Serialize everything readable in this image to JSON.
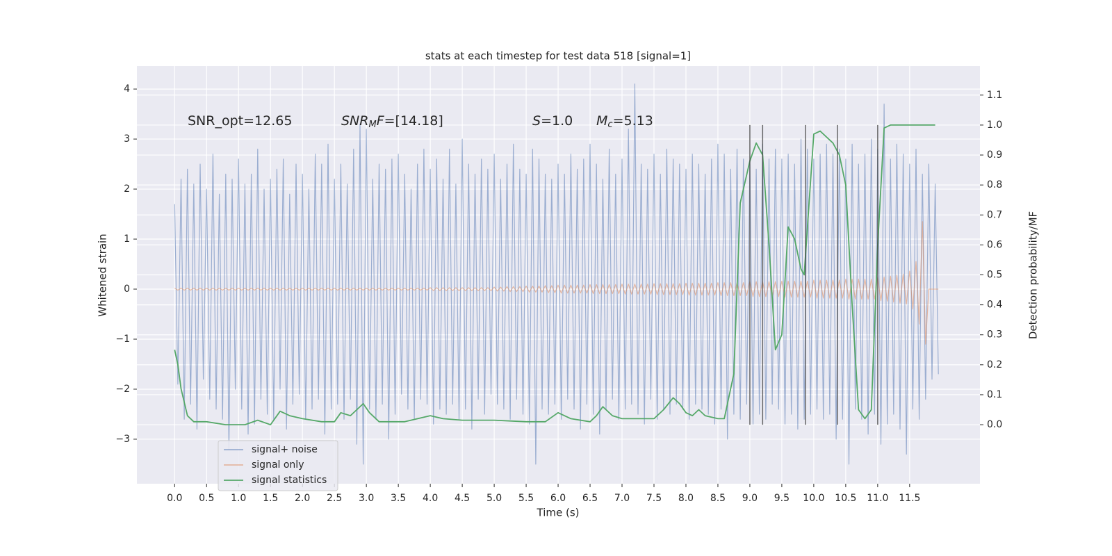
{
  "chart_data": {
    "type": "line",
    "title": "stats at each timestep for test data 518 [signal=1]",
    "xlabel": "Time (s)",
    "ylabel": "Whitened strain",
    "y2label": "Detection probability/MF",
    "grid": true,
    "legend": "lower left",
    "background": "#eaeaf2",
    "xlim": [
      -0.59,
      12.6
    ],
    "ylim": [
      -3.89,
      4.46
    ],
    "y2lim": [
      -0.197,
      1.197
    ],
    "xticks": [
      {
        "value": 0,
        "label": "0.0"
      },
      0.5,
      {
        "value": 1,
        "label": "1.0"
      },
      1.5,
      {
        "value": 2,
        "label": "2.0"
      },
      2.5,
      {
        "value": 3,
        "label": "3.0"
      },
      3.5,
      {
        "value": 4,
        "label": "4.0"
      },
      4.5,
      {
        "value": 5,
        "label": "5.0"
      },
      5.5,
      {
        "value": 6,
        "label": "6.0"
      },
      6.5,
      {
        "value": 7,
        "label": "7.0"
      },
      7.5,
      {
        "value": 8,
        "label": "8.0"
      },
      8.5,
      {
        "value": 9,
        "label": "9.0"
      },
      9.5,
      {
        "value": 10,
        "label": "10.0"
      },
      10.5,
      {
        "value": 11,
        "label": "11.0"
      },
      11.5
    ],
    "yticks": [
      {
        "value": -3,
        "label": "−3"
      },
      {
        "value": -2,
        "label": "−2"
      },
      {
        "value": -1,
        "label": "−1"
      },
      0,
      1,
      2,
      3,
      4
    ],
    "y2ticks": [
      {
        "value": 0,
        "label": "0.0"
      },
      0.1,
      0.2,
      0.3,
      0.4,
      0.5,
      0.6,
      0.7,
      0.8,
      0.9,
      {
        "value": 1,
        "label": "1.0"
      },
      1.1
    ],
    "annotations": [
      [
        "SNR_opt=12.65"
      ],
      [
        "SNR",
        "M",
        "F",
        "=[14.18]"
      ],
      [
        "S",
        "=1.0"
      ],
      [
        "M",
        "c",
        "=5.13"
      ]
    ],
    "vlines": [
      9.0,
      9.2,
      9.87,
      10.37,
      11.0
    ],
    "vline_color": "#444444",
    "x": [
      0,
      0.05,
      0.1,
      0.15,
      0.2,
      0.25,
      0.3,
      0.35,
      0.4,
      0.45,
      0.5,
      0.55,
      0.6,
      0.65,
      0.7,
      0.75,
      0.8,
      0.85,
      0.9,
      0.95,
      1,
      1.05,
      1.1,
      1.15,
      1.2,
      1.25,
      1.3,
      1.35,
      1.4,
      1.45,
      1.5,
      1.55,
      1.6,
      1.65,
      1.7,
      1.75,
      1.8,
      1.85,
      1.9,
      1.95,
      2,
      2.05,
      2.1,
      2.15,
      2.2,
      2.25,
      2.3,
      2.35,
      2.4,
      2.45,
      2.5,
      2.55,
      2.6,
      2.65,
      2.7,
      2.75,
      2.8,
      2.85,
      2.9,
      2.95,
      3,
      3.05,
      3.1,
      3.15,
      3.2,
      3.25,
      3.3,
      3.35,
      3.4,
      3.45,
      3.5,
      3.55,
      3.6,
      3.65,
      3.7,
      3.75,
      3.8,
      3.85,
      3.9,
      3.95,
      4,
      4.05,
      4.1,
      4.15,
      4.2,
      4.25,
      4.3,
      4.35,
      4.4,
      4.45,
      4.5,
      4.55,
      4.6,
      4.65,
      4.7,
      4.75,
      4.8,
      4.85,
      4.9,
      4.95,
      5,
      5.05,
      5.1,
      5.15,
      5.2,
      5.25,
      5.3,
      5.35,
      5.4,
      5.45,
      5.5,
      5.55,
      5.6,
      5.65,
      5.7,
      5.75,
      5.8,
      5.85,
      5.9,
      5.95,
      6,
      6.05,
      6.1,
      6.15,
      6.2,
      6.25,
      6.3,
      6.35,
      6.4,
      6.45,
      6.5,
      6.55,
      6.6,
      6.65,
      6.7,
      6.75,
      6.8,
      6.85,
      6.9,
      6.95,
      7,
      7.05,
      7.1,
      7.15,
      7.2,
      7.25,
      7.3,
      7.35,
      7.4,
      7.45,
      7.5,
      7.55,
      7.6,
      7.65,
      7.7,
      7.75,
      7.8,
      7.85,
      7.9,
      7.95,
      8,
      8.05,
      8.1,
      8.15,
      8.2,
      8.25,
      8.3,
      8.35,
      8.4,
      8.45,
      8.5,
      8.55,
      8.6,
      8.65,
      8.7,
      8.75,
      8.8,
      8.85,
      8.9,
      8.95,
      9,
      9.05,
      9.1,
      9.15,
      9.2,
      9.25,
      9.3,
      9.35,
      9.4,
      9.45,
      9.5,
      9.55,
      9.6,
      9.65,
      9.7,
      9.75,
      9.8,
      9.85,
      9.9,
      9.95,
      10,
      10.05,
      10.1,
      10.15,
      10.2,
      10.25,
      10.3,
      10.35,
      10.4,
      10.45,
      10.5,
      10.55,
      10.6,
      10.65,
      10.7,
      10.75,
      10.8,
      10.85,
      10.9,
      10.95,
      11,
      11.05,
      11.1,
      11.15,
      11.2,
      11.25,
      11.3,
      11.35,
      11.4,
      11.45,
      11.5,
      11.55,
      11.6,
      11.65,
      11.7,
      11.75,
      11.8,
      11.85,
      11.9,
      11.95
    ],
    "series": [
      {
        "name": "signal+ noise",
        "color": "#4c72b0",
        "values": [
          1.7,
          -1.9,
          2.2,
          -2.6,
          2.4,
          -2.3,
          2.1,
          -2.8,
          2.5,
          -1.8,
          2.0,
          -2.2,
          2.7,
          -2.4,
          1.9,
          -2.6,
          2.3,
          -3.2,
          2.2,
          -2.0,
          2.6,
          -2.4,
          2.1,
          -2.9,
          2.3,
          -2.7,
          2.8,
          -2.2,
          2.0,
          -2.5,
          2.2,
          -2.6,
          2.4,
          -2.0,
          2.6,
          -2.8,
          1.9,
          -2.3,
          2.5,
          -2.1,
          2.3,
          -2.6,
          2.0,
          -2.4,
          2.7,
          -2.2,
          2.5,
          -2.9,
          2.9,
          -2.4,
          2.2,
          -2.3,
          2.5,
          -2.6,
          2.1,
          -2.2,
          2.8,
          -3.1,
          3.3,
          -3.5,
          3.2,
          -2.4,
          2.2,
          -2.6,
          2.5,
          -2.3,
          2.4,
          -3.0,
          2.6,
          -2.5,
          2.7,
          -2.1,
          2.3,
          -2.4,
          2.0,
          -2.6,
          2.5,
          -2.2,
          2.8,
          -2.3,
          2.4,
          -2.7,
          2.6,
          -2.4,
          2.2,
          -2.5,
          2.8,
          -2.3,
          2.1,
          -2.6,
          3.0,
          -2.4,
          2.5,
          -2.8,
          2.3,
          -2.2,
          2.6,
          -2.5,
          2.4,
          -2.1,
          2.7,
          -2.3,
          2.2,
          -2.4,
          2.5,
          -2.6,
          2.9,
          -2.2,
          2.4,
          -2.5,
          2.3,
          -2.7,
          2.8,
          -3.5,
          2.6,
          -2.4,
          2.3,
          -2.5,
          2.2,
          -2.3,
          2.5,
          -2.6,
          2.3,
          -2.2,
          2.7,
          -2.4,
          2.4,
          -2.8,
          2.6,
          -2.3,
          2.9,
          -2.5,
          2.5,
          -2.9,
          2.2,
          -2.4,
          2.8,
          -2.2,
          2.3,
          -2.6,
          2.6,
          -2.4,
          3.2,
          -2.3,
          4.1,
          -2.5,
          2.5,
          -2.7,
          2.4,
          -2.2,
          2.7,
          -2.6,
          2.3,
          -2.4,
          2.8,
          -2.5,
          2.6,
          -2.3,
          2.5,
          -2.4,
          2.4,
          -2.6,
          2.7,
          -2.3,
          2.5,
          -2.4,
          2.3,
          -2.5,
          2.6,
          -2.7,
          2.9,
          -2.4,
          2.7,
          -3.0,
          2.4,
          -2.5,
          2.8,
          -2.6,
          2.6,
          -2.3,
          2.5,
          -2.7,
          2.4,
          -2.5,
          2.9,
          -2.6,
          2.6,
          -2.3,
          2.8,
          -2.4,
          2.6,
          -2.7,
          2.7,
          -2.5,
          2.5,
          -2.8,
          3.0,
          -2.6,
          2.8,
          -2.5,
          2.6,
          -2.4,
          2.7,
          -2.6,
          2.9,
          -2.5,
          2.7,
          -3.0,
          2.8,
          -2.6,
          2.6,
          -3.5,
          2.9,
          -2.4,
          2.5,
          -2.6,
          2.7,
          -2.9,
          3.0,
          -2.5,
          2.8,
          -3.1,
          3.7,
          -2.7,
          2.6,
          -2.5,
          2.9,
          -2.8,
          2.7,
          -3.3,
          2.5,
          -2.4,
          2.8,
          -2.6,
          2.3,
          -2.2,
          2.5,
          -1.8,
          2.1,
          -1.7
        ]
      },
      {
        "name": "signal only",
        "color": "#dd8452",
        "values": [
          0.02,
          -0.02,
          0.02,
          -0.02,
          0.02,
          -0.02,
          0.02,
          -0.02,
          0.02,
          -0.02,
          0.02,
          -0.02,
          0.02,
          -0.02,
          0.02,
          -0.02,
          0.02,
          -0.02,
          0.02,
          -0.02,
          0.02,
          -0.02,
          0.02,
          -0.02,
          0.02,
          -0.02,
          0.02,
          -0.02,
          0.02,
          -0.02,
          0.02,
          -0.02,
          0.02,
          -0.02,
          0.02,
          -0.02,
          0.02,
          -0.02,
          0.02,
          -0.02,
          0.02,
          -0.02,
          0.02,
          -0.02,
          0.02,
          -0.02,
          0.02,
          -0.02,
          0.02,
          -0.02,
          0.02,
          -0.02,
          0.02,
          -0.02,
          0.02,
          -0.02,
          0.02,
          -0.02,
          0.02,
          -0.02,
          0.02,
          -0.02,
          0.02,
          -0.02,
          0.02,
          -0.02,
          0.02,
          -0.02,
          0.02,
          -0.02,
          0.02,
          -0.02,
          0.02,
          -0.02,
          0.02,
          -0.02,
          0.02,
          -0.02,
          0.02,
          -0.02,
          0.03,
          -0.03,
          0.03,
          -0.03,
          0.03,
          -0.03,
          0.03,
          -0.03,
          0.03,
          -0.03,
          0.03,
          -0.03,
          0.03,
          -0.03,
          0.03,
          -0.03,
          0.03,
          -0.03,
          0.03,
          -0.03,
          0.04,
          -0.04,
          0.04,
          -0.04,
          0.05,
          -0.05,
          0.05,
          -0.05,
          0.05,
          -0.05,
          0.06,
          -0.06,
          0.06,
          -0.06,
          0.06,
          -0.06,
          0.07,
          -0.07,
          0.07,
          -0.07,
          0.08,
          -0.08,
          0.08,
          -0.08,
          0.08,
          -0.08,
          0.08,
          -0.08,
          0.08,
          -0.08,
          0.09,
          -0.09,
          0.09,
          -0.09,
          0.09,
          -0.09,
          0.09,
          -0.09,
          0.09,
          -0.09,
          0.1,
          -0.1,
          0.1,
          -0.1,
          0.1,
          -0.1,
          0.1,
          -0.1,
          0.1,
          -0.1,
          0.11,
          -0.11,
          0.11,
          -0.11,
          0.11,
          -0.11,
          0.11,
          -0.11,
          0.11,
          -0.11,
          0.12,
          -0.12,
          0.12,
          -0.12,
          0.12,
          -0.12,
          0.12,
          -0.12,
          0.12,
          -0.12,
          0.13,
          -0.13,
          0.13,
          -0.13,
          0.13,
          -0.13,
          0.13,
          -0.13,
          0.13,
          -0.13,
          0.15,
          -0.15,
          0.15,
          -0.15,
          0.15,
          -0.15,
          0.15,
          -0.15,
          0.15,
          -0.15,
          0.16,
          -0.16,
          0.16,
          -0.16,
          0.16,
          -0.16,
          0.16,
          -0.16,
          0.16,
          -0.16,
          0.18,
          -0.18,
          0.18,
          -0.18,
          0.18,
          -0.18,
          0.18,
          -0.18,
          0.18,
          -0.18,
          0.2,
          -0.2,
          0.2,
          -0.2,
          0.2,
          -0.2,
          0.2,
          -0.2,
          0.2,
          -0.2,
          0.23,
          -0.23,
          0.24,
          -0.24,
          0.26,
          -0.26,
          0.28,
          -0.28,
          0.3,
          -0.3,
          0.36,
          -0.4,
          0.55,
          -0.7,
          1.35,
          -1.1,
          0,
          0,
          0,
          0
        ]
      },
      {
        "name": "signal statistics",
        "color": "#55a868",
        "axis": "y2",
        "x": [
          0,
          0.05,
          0.1,
          0.2,
          0.3,
          0.5,
          0.8,
          1.1,
          1.3,
          1.5,
          1.65,
          1.8,
          2.0,
          2.3,
          2.5,
          2.6,
          2.75,
          2.85,
          2.95,
          3.05,
          3.2,
          3.6,
          4.0,
          4.2,
          4.5,
          5.0,
          5.5,
          5.8,
          6.0,
          6.2,
          6.5,
          6.6,
          6.7,
          6.85,
          7.0,
          7.2,
          7.5,
          7.65,
          7.8,
          7.9,
          8.0,
          8.1,
          8.2,
          8.3,
          8.5,
          8.6,
          8.75,
          8.85,
          9.0,
          9.1,
          9.2,
          9.3,
          9.4,
          9.5,
          9.6,
          9.7,
          9.8,
          9.85,
          10.0,
          10.1,
          10.3,
          10.4,
          10.5,
          10.6,
          10.7,
          10.8,
          10.9,
          11.0,
          11.1,
          11.2,
          11.9
        ],
        "values": [
          0.25,
          0.2,
          0.12,
          0.03,
          0.01,
          0.01,
          0.0,
          0.0,
          0.015,
          0.0,
          0.045,
          0.03,
          0.02,
          0.01,
          0.01,
          0.04,
          0.03,
          0.05,
          0.07,
          0.04,
          0.01,
          0.01,
          0.03,
          0.02,
          0.015,
          0.015,
          0.01,
          0.01,
          0.04,
          0.02,
          0.01,
          0.03,
          0.06,
          0.03,
          0.02,
          0.02,
          0.02,
          0.05,
          0.09,
          0.07,
          0.04,
          0.03,
          0.05,
          0.03,
          0.02,
          0.02,
          0.17,
          0.74,
          0.88,
          0.94,
          0.9,
          0.6,
          0.25,
          0.3,
          0.66,
          0.62,
          0.52,
          0.5,
          0.97,
          0.98,
          0.94,
          0.9,
          0.8,
          0.4,
          0.05,
          0.02,
          0.05,
          0.6,
          0.99,
          1.0,
          1.0
        ]
      }
    ]
  }
}
